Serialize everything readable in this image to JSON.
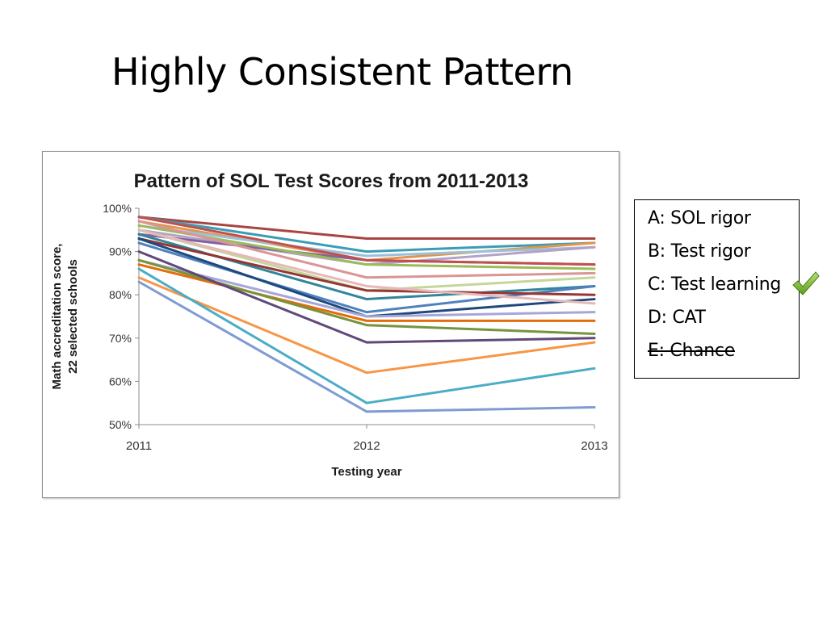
{
  "slide": {
    "title": "Highly Consistent Pattern"
  },
  "options": [
    {
      "label": "A: SOL rigor",
      "struck": false
    },
    {
      "label": "B: Test rigor",
      "struck": false
    },
    {
      "label": "C: Test learning",
      "struck": false,
      "checked": true
    },
    {
      "label": "D: CAT",
      "struck": false
    },
    {
      "label": "E: Chance",
      "struck": true
    }
  ],
  "check_icon": "check-mark-icon",
  "chart_data": {
    "type": "line",
    "title": "Pattern of SOL Test Scores from 2011-2013",
    "xlabel": "Testing year",
    "ylabel": "Math accreditation score, 22 selected schools",
    "x": [
      "2011",
      "2012",
      "2013"
    ],
    "ylim": [
      50,
      100
    ],
    "yticks": [
      "50%",
      "60%",
      "70%",
      "80%",
      "90%",
      "100%"
    ],
    "grid": false,
    "legend": "none",
    "series": [
      {
        "color": "#A94442",
        "values": [
          98,
          93,
          93
        ]
      },
      {
        "color": "#3A9DB5",
        "values": [
          98,
          90,
          92
        ]
      },
      {
        "color": "#E0954B",
        "values": [
          97,
          88,
          92
        ]
      },
      {
        "color": "#9CC0DA",
        "values": [
          96,
          89,
          91
        ]
      },
      {
        "color": "#B3A2C7",
        "values": [
          95,
          87,
          91
        ]
      },
      {
        "color": "#8064A2",
        "values": [
          94,
          88,
          87
        ]
      },
      {
        "color": "#9BBB59",
        "values": [
          96,
          87,
          86
        ]
      },
      {
        "color": "#D99694",
        "values": [
          97,
          84,
          85
        ]
      },
      {
        "color": "#C3D69B",
        "values": [
          95,
          81,
          84
        ]
      },
      {
        "color": "#31859C",
        "values": [
          94,
          79,
          82
        ]
      },
      {
        "color": "#4F81BD",
        "values": [
          92,
          76,
          82
        ]
      },
      {
        "color": "#953735",
        "values": [
          93,
          81,
          80
        ]
      },
      {
        "color": "#1F497D",
        "values": [
          93,
          75,
          79
        ]
      },
      {
        "color": "#E6B9B8",
        "values": [
          95,
          82,
          78
        ]
      },
      {
        "color": "#A6A6D9",
        "values": [
          88,
          75,
          76
        ]
      },
      {
        "color": "#E46C0A",
        "values": [
          87,
          74,
          74
        ]
      },
      {
        "color": "#77933C",
        "values": [
          88,
          73,
          71
        ]
      },
      {
        "color": "#60497A",
        "values": [
          90,
          69,
          70
        ]
      },
      {
        "color": "#F79646",
        "values": [
          84,
          62,
          69
        ]
      },
      {
        "color": "#4BACC6",
        "values": [
          86,
          55,
          63
        ]
      },
      {
        "color": "#7F9BD0",
        "values": [
          83,
          53,
          54
        ]
      },
      {
        "color": "#C0504D",
        "values": [
          98,
          88,
          87
        ]
      }
    ]
  }
}
